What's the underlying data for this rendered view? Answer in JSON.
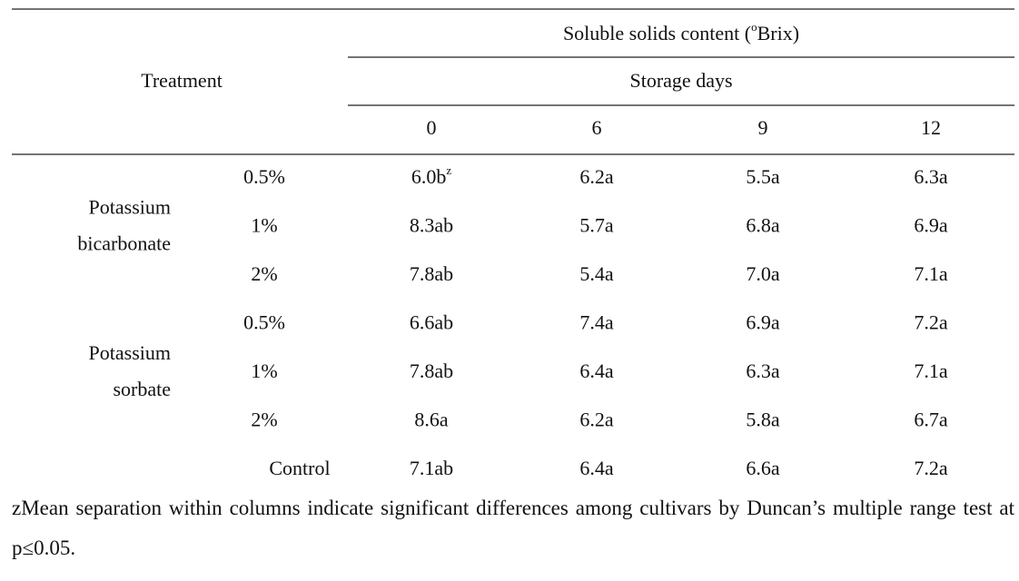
{
  "header": {
    "treatment": "Treatment",
    "measure": {
      "text": "Soluble solids content (",
      "superscript": "o",
      "text_after": "Brix)"
    },
    "subheader": "Storage days",
    "days": [
      "0",
      "6",
      "9",
      "12"
    ]
  },
  "groups": [
    {
      "name_lines": [
        "Potassium",
        "bicarbonate"
      ],
      "rows": [
        {
          "concentration": "0.5%",
          "cells": [
            {
              "text": "6.0b",
              "superscript": "z"
            },
            {
              "text": "6.2a"
            },
            {
              "text": "5.5a"
            },
            {
              "text": "6.3a"
            }
          ]
        },
        {
          "concentration": "1%",
          "cells": [
            {
              "text": "8.3ab"
            },
            {
              "text": "5.7a"
            },
            {
              "text": "6.8a"
            },
            {
              "text": "6.9a"
            }
          ]
        },
        {
          "concentration": "2%",
          "cells": [
            {
              "text": "7.8ab"
            },
            {
              "text": "5.4a"
            },
            {
              "text": "7.0a"
            },
            {
              "text": "7.1a"
            }
          ]
        }
      ]
    },
    {
      "name_lines": [
        "Potassium",
        "sorbate"
      ],
      "rows": [
        {
          "concentration": "0.5%",
          "cells": [
            {
              "text": "6.6ab"
            },
            {
              "text": "7.4a"
            },
            {
              "text": "6.9a"
            },
            {
              "text": "7.2a"
            }
          ]
        },
        {
          "concentration": "1%",
          "cells": [
            {
              "text": "7.8ab"
            },
            {
              "text": "6.4a"
            },
            {
              "text": "6.3a"
            },
            {
              "text": "7.1a"
            }
          ]
        },
        {
          "concentration": "2%",
          "cells": [
            {
              "text": "8.6a"
            },
            {
              "text": "6.2a"
            },
            {
              "text": "5.8a"
            },
            {
              "text": "6.7a"
            }
          ]
        }
      ]
    }
  ],
  "control": {
    "label": "Control",
    "cells": [
      {
        "text": "7.1ab"
      },
      {
        "text": "6.4a"
      },
      {
        "text": "6.6a"
      },
      {
        "text": "7.2a"
      }
    ]
  },
  "footnote": "zMean separation within columns indicate significant differences among cultivars by Duncan’s multiple range test at p≤0.05."
}
